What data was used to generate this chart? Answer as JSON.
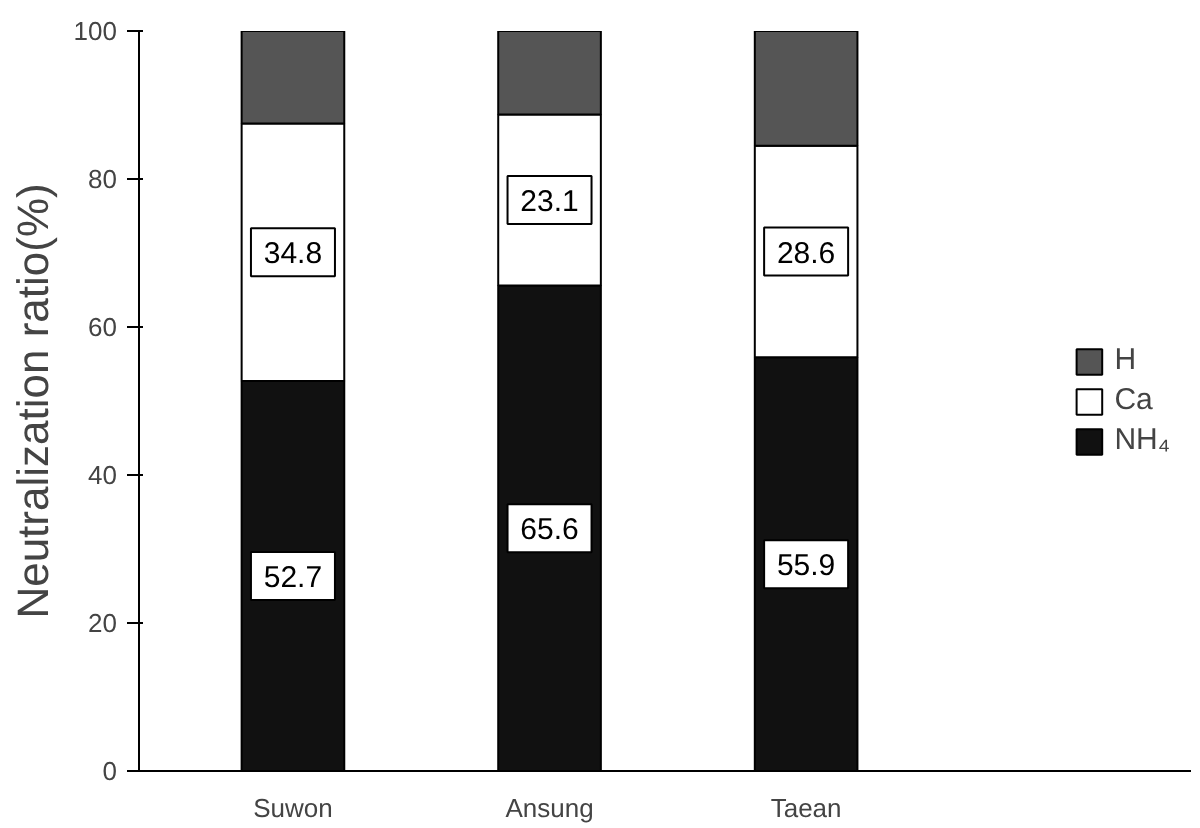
{
  "chart_data": {
    "type": "bar",
    "stacked": true,
    "ylabel": "Neutralization ratio(%)",
    "categories": [
      "Suwon",
      "Ansung",
      "Taean"
    ],
    "series": [
      {
        "name": "NH₄",
        "color": "#111111",
        "values": [
          52.7,
          65.6,
          55.9
        ],
        "value_labels": [
          "52.7",
          "65.6",
          "55.9"
        ]
      },
      {
        "name": "Ca",
        "color": "#ffffff",
        "values": [
          34.8,
          23.1,
          28.6
        ],
        "value_labels": [
          "34.8",
          "23.1",
          "28.6"
        ]
      },
      {
        "name": "H",
        "color": "#555555",
        "values": [
          12.5,
          11.3,
          15.5
        ]
      }
    ],
    "ylim": [
      0,
      100
    ],
    "yticks": [
      0,
      20,
      40,
      60,
      80,
      100
    ],
    "grid": false,
    "legend": "right"
  }
}
